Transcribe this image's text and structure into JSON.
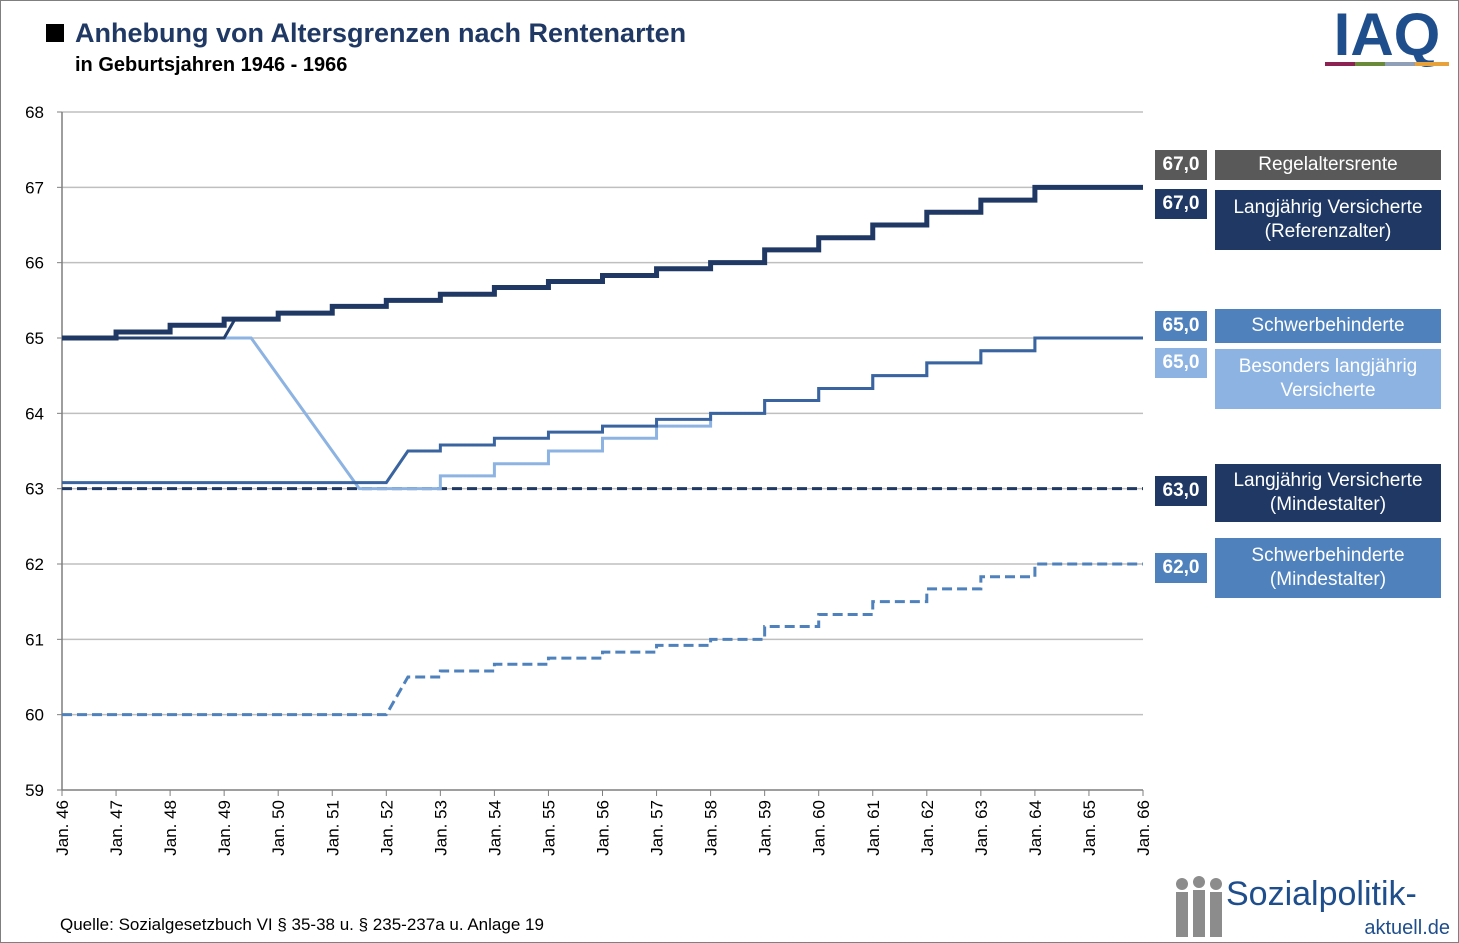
{
  "chart_data": {
    "type": "line",
    "title": "Anhebung von Altersgrenzen nach Rentenarten",
    "subtitle": "in Geburtsjahren 1946 - 1966",
    "source": "Quelle: Sozialgesetzbuch  VI § 35-38 u. § 235-237a u. Anlage 19",
    "logos": {
      "iaq": "IAQ",
      "site": "Sozialpolitik-",
      "site_domain": "aktuell.de"
    },
    "xlim": [
      46,
      66
    ],
    "xticks": [
      {
        "value": 46,
        "label": "Jan. 46"
      },
      {
        "value": 47,
        "label": "Jan. 47"
      },
      {
        "value": 48,
        "label": "Jan. 48"
      },
      {
        "value": 49,
        "label": "Jan. 49"
      },
      {
        "value": 50,
        "label": "Jan. 50"
      },
      {
        "value": 51,
        "label": "Jan. 51"
      },
      {
        "value": 52,
        "label": "Jan. 52"
      },
      {
        "value": 53,
        "label": "Jan. 53"
      },
      {
        "value": 54,
        "label": "Jan. 54"
      },
      {
        "value": 55,
        "label": "Jan. 55"
      },
      {
        "value": 56,
        "label": "Jan. 56"
      },
      {
        "value": 57,
        "label": "Jan. 57"
      },
      {
        "value": 58,
        "label": "Jan. 58"
      },
      {
        "value": 59,
        "label": "Jan. 59"
      },
      {
        "value": 60,
        "label": "Jan. 60"
      },
      {
        "value": 61,
        "label": "Jan. 61"
      },
      {
        "value": 62,
        "label": "Jan. 62"
      },
      {
        "value": 63,
        "label": "Jan. 63"
      },
      {
        "value": 64,
        "label": "Jan. 64"
      },
      {
        "value": 65,
        "label": "Jan. 65"
      },
      {
        "value": 66,
        "label": "Jan. 66"
      }
    ],
    "ylim": [
      59,
      68
    ],
    "yticks": [
      59,
      60,
      61,
      62,
      63,
      64,
      65,
      66,
      67,
      68
    ],
    "grid": true,
    "series": [
      {
        "name": "Regelaltersrente",
        "color": "#1f3864",
        "legend_color": "#595959",
        "width": 5,
        "dash": false,
        "end_label": "67,0",
        "x": [
          46,
          47,
          47,
          48,
          48,
          49,
          49,
          50,
          50,
          51,
          51,
          52,
          52,
          53,
          53,
          54,
          54,
          55,
          55,
          56,
          56,
          57,
          57,
          58,
          58,
          59,
          59,
          60,
          60,
          61,
          61,
          62,
          62,
          63,
          63,
          64,
          64,
          66
        ],
        "values": [
          65,
          65,
          65.08,
          65.08,
          65.17,
          65.17,
          65.25,
          65.25,
          65.33,
          65.33,
          65.42,
          65.42,
          65.5,
          65.5,
          65.58,
          65.58,
          65.67,
          65.67,
          65.75,
          65.75,
          65.83,
          65.83,
          65.92,
          65.92,
          66,
          66,
          66.17,
          66.17,
          66.33,
          66.33,
          66.5,
          66.5,
          66.67,
          66.67,
          66.83,
          66.83,
          67,
          67
        ]
      },
      {
        "name": "Langjährig Versicherte\n(Referenzalter)",
        "color": "#24406f",
        "legend_color": "#1f3864",
        "width": 3,
        "dash": false,
        "end_label": "67,0",
        "x": [
          46,
          49,
          49.2,
          50,
          50,
          51,
          51,
          52,
          52,
          53,
          53,
          54,
          54,
          55,
          55,
          56,
          56,
          57,
          57,
          58,
          58,
          59,
          59,
          60,
          60,
          61,
          61,
          62,
          62,
          63,
          63,
          64,
          64,
          66
        ],
        "values": [
          65,
          65,
          65.25,
          65.25,
          65.33,
          65.33,
          65.42,
          65.42,
          65.5,
          65.5,
          65.58,
          65.58,
          65.67,
          65.67,
          65.75,
          65.75,
          65.83,
          65.83,
          65.92,
          65.92,
          66,
          66,
          66.17,
          66.17,
          66.33,
          66.33,
          66.5,
          66.5,
          66.67,
          66.67,
          66.83,
          66.83,
          67,
          67
        ]
      },
      {
        "name": "Schwerbehinderte",
        "color": "#3a64a0",
        "legend_color": "#4f81bd",
        "width": 3,
        "dash": false,
        "end_label": "65,0",
        "x": [
          46,
          52,
          52.4,
          53,
          53,
          54,
          54,
          55,
          55,
          56,
          56,
          57,
          57,
          58,
          58,
          59,
          59,
          60,
          60,
          61,
          61,
          62,
          62,
          63,
          63,
          64,
          64,
          66
        ],
        "values": [
          63.08,
          63.08,
          63.5,
          63.5,
          63.58,
          63.58,
          63.67,
          63.67,
          63.75,
          63.75,
          63.83,
          63.83,
          63.92,
          63.92,
          64,
          64,
          64.17,
          64.17,
          64.33,
          64.33,
          64.5,
          64.5,
          64.67,
          64.67,
          64.83,
          64.83,
          65,
          65
        ]
      },
      {
        "name": "Besonders langjährig\nVersicherte",
        "color": "#8db3e2",
        "legend_color": "#8db3e2",
        "width": 3,
        "dash": false,
        "end_label": "65,0",
        "x": [
          46,
          49.5,
          51.5,
          53,
          53,
          54,
          54,
          55,
          55,
          56,
          56,
          57,
          57,
          58,
          58,
          59,
          59,
          60,
          60,
          61,
          61,
          62,
          62,
          63,
          63,
          64,
          64,
          66
        ],
        "values": [
          65,
          65,
          63,
          63,
          63.17,
          63.17,
          63.33,
          63.33,
          63.5,
          63.5,
          63.67,
          63.67,
          63.83,
          63.83,
          64,
          64,
          64.17,
          64.17,
          64.33,
          64.33,
          64.5,
          64.5,
          64.67,
          64.67,
          64.83,
          64.83,
          65,
          65
        ]
      },
      {
        "name": "Langjährig Versicherte\n(Mindestalter)",
        "color": "#1f3864",
        "legend_color": "#1f3864",
        "width": 3,
        "dash": true,
        "end_label": "63,0",
        "x": [
          46,
          66
        ],
        "values": [
          63,
          63
        ]
      },
      {
        "name": "Schwerbehinderte\n(Mindestalter)",
        "color": "#4f81bd",
        "legend_color": "#4f81bd",
        "width": 3,
        "dash": true,
        "end_label": "62,0",
        "x": [
          46,
          52,
          52.4,
          53,
          53,
          54,
          54,
          55,
          55,
          56,
          56,
          57,
          57,
          58,
          58,
          59,
          59,
          60,
          60,
          61,
          61,
          62,
          62,
          63,
          63,
          64,
          64,
          66
        ],
        "values": [
          60,
          60,
          60.5,
          60.5,
          60.58,
          60.58,
          60.67,
          60.67,
          60.75,
          60.75,
          60.83,
          60.83,
          60.92,
          60.92,
          61,
          61,
          61.17,
          61.17,
          61.33,
          61.33,
          61.5,
          61.5,
          61.67,
          61.67,
          61.83,
          61.83,
          62,
          62
        ]
      }
    ]
  }
}
